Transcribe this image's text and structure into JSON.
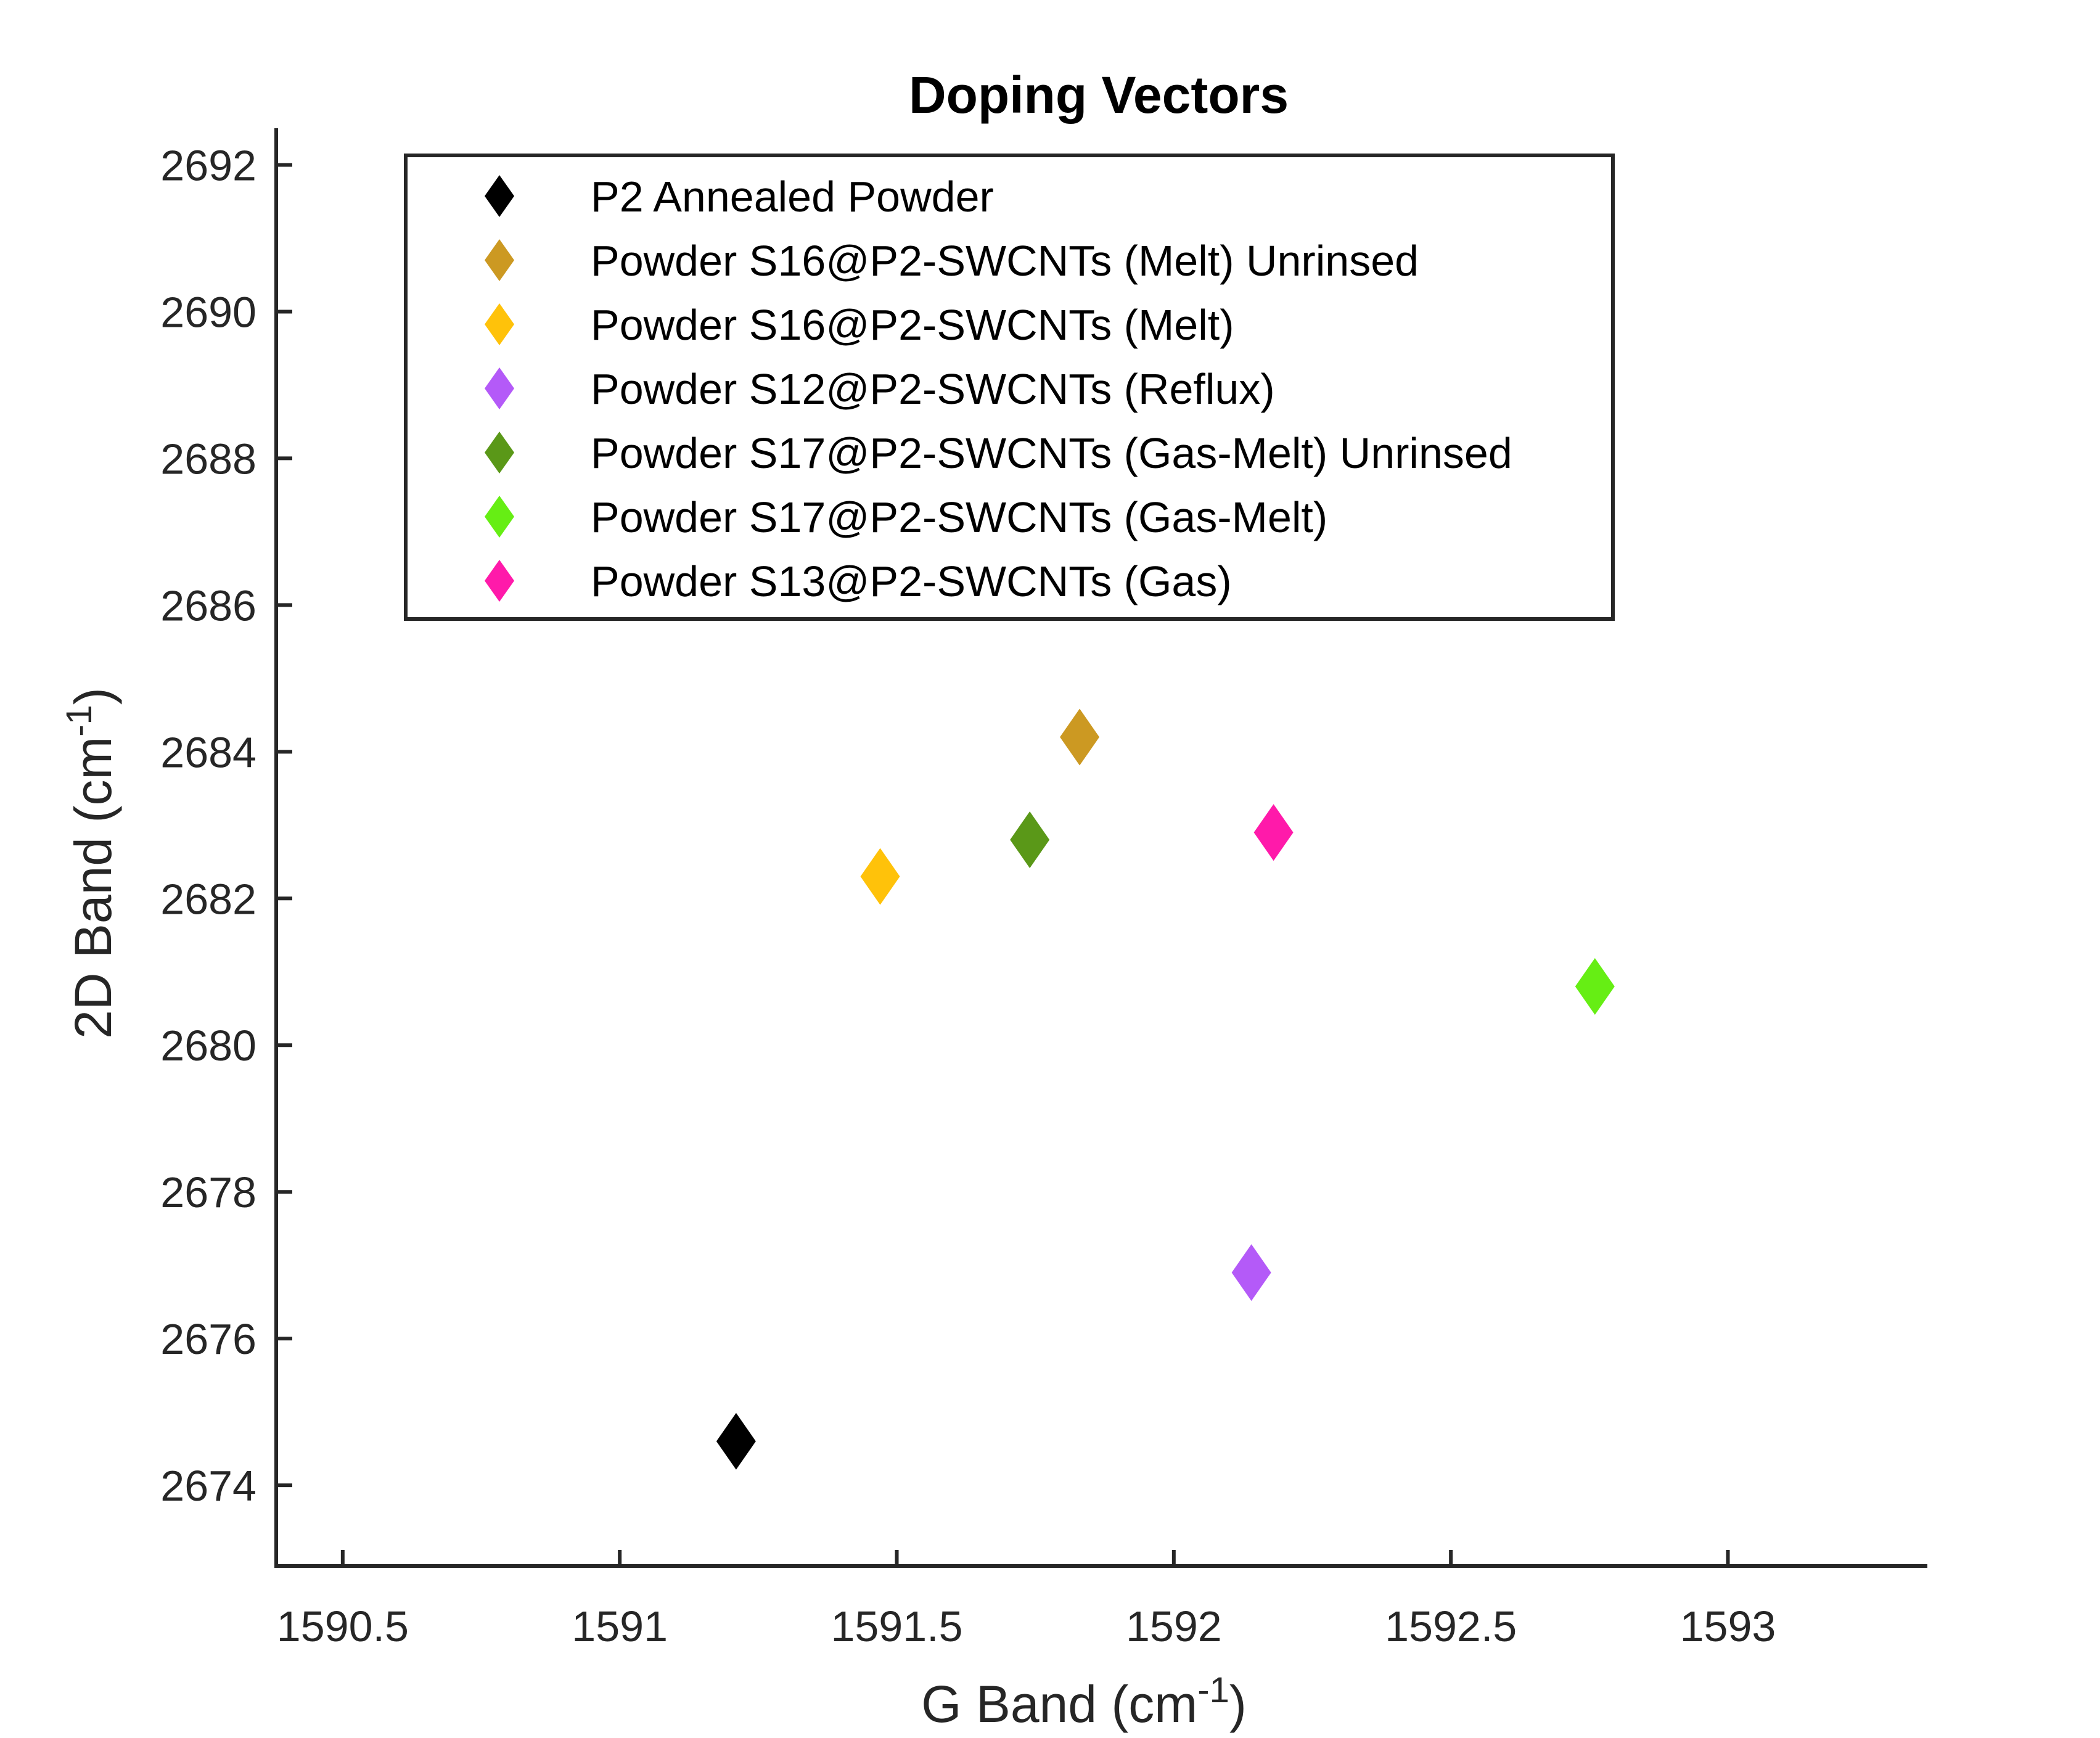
{
  "chart_data": {
    "type": "scatter",
    "title": "Doping Vectors",
    "xlabel": {
      "base": "G Band (cm",
      "sup": "-1",
      "close": ")"
    },
    "ylabel": {
      "base": "2D Band (cm",
      "sup": "-1",
      "close": ")"
    },
    "xlim": [
      1590.38,
      1593.36
    ],
    "ylim": [
      2672.9,
      2692.5
    ],
    "xticks": [
      1590.5,
      1591,
      1591.5,
      1592,
      1592.5,
      1593
    ],
    "xtick_labels": [
      "1590.5",
      "1591",
      "1591.5",
      "1592",
      "1592.5",
      "1593"
    ],
    "yticks": [
      2674,
      2676,
      2678,
      2680,
      2682,
      2684,
      2686,
      2688,
      2690,
      2692
    ],
    "ytick_labels": [
      "2674",
      "2676",
      "2678",
      "2680",
      "2682",
      "2684",
      "2686",
      "2688",
      "2690",
      "2692"
    ],
    "grid": false,
    "legend_position": "top-left",
    "marker": "diamond",
    "series": [
      {
        "name": "P2 Annealed Powder",
        "color": "#000000",
        "x": 1591.21,
        "y": 2674.6
      },
      {
        "name": "Powder S16@P2-SWCNTs (Melt) Unrinsed",
        "color": "#CC9922",
        "x": 1591.83,
        "y": 2684.2
      },
      {
        "name": "Powder S16@P2-SWCNTs (Melt)",
        "color": "#FFC20A",
        "x": 1591.47,
        "y": 2682.3
      },
      {
        "name": "Powder S12@P2-SWCNTs (Reflux)",
        "color": "#B45AF8",
        "x": 1592.14,
        "y": 2676.9
      },
      {
        "name": "Powder S17@P2-SWCNTs (Gas-Melt) Unrinsed",
        "color": "#5A9818",
        "x": 1591.74,
        "y": 2682.8
      },
      {
        "name": "Powder S17@P2-SWCNTs (Gas-Melt)",
        "color": "#66EE14",
        "x": 1592.76,
        "y": 2680.8
      },
      {
        "name": "Powder S13@P2-SWCNTs (Gas)",
        "color": "#FF1AAA",
        "x": 1592.18,
        "y": 2682.9
      }
    ]
  }
}
